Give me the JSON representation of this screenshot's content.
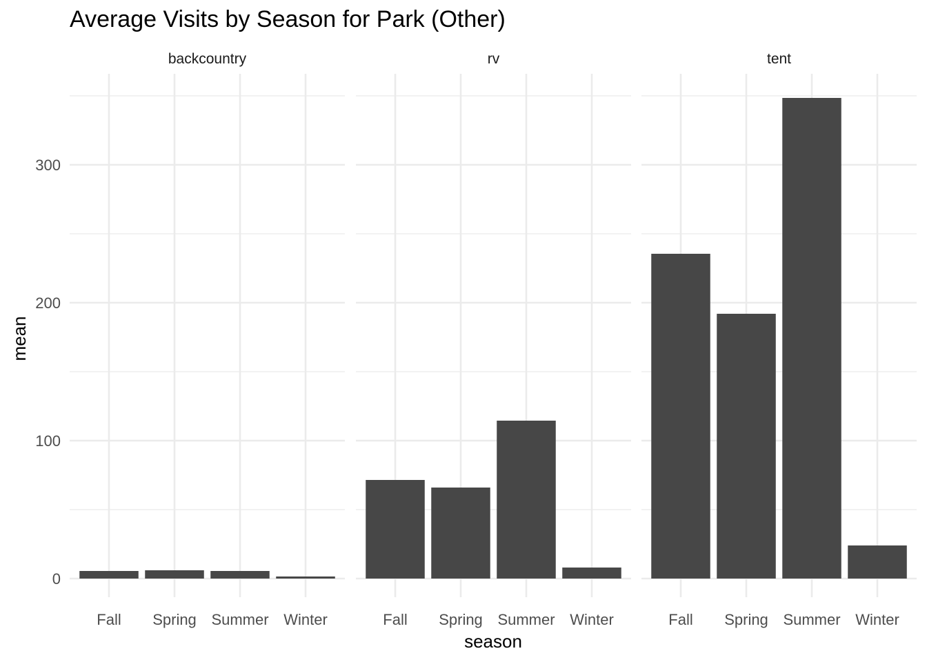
{
  "chart_data": {
    "type": "bar",
    "title": "Average Visits by Season for Park (Other)",
    "xlabel": "season",
    "ylabel": "mean",
    "categories": [
      "Fall",
      "Spring",
      "Summer",
      "Winter"
    ],
    "ylim": [
      -13.5,
      366
    ],
    "yticks": [
      0,
      100,
      200,
      300
    ],
    "grid": true,
    "bar_color": "#474747",
    "facets": [
      {
        "label": "backcountry",
        "values": [
          5.5,
          6,
          5.5,
          1.5
        ]
      },
      {
        "label": "rv",
        "values": [
          71.5,
          66,
          114.5,
          8
        ]
      },
      {
        "label": "tent",
        "values": [
          235.5,
          192,
          348.5,
          24
        ]
      }
    ]
  }
}
